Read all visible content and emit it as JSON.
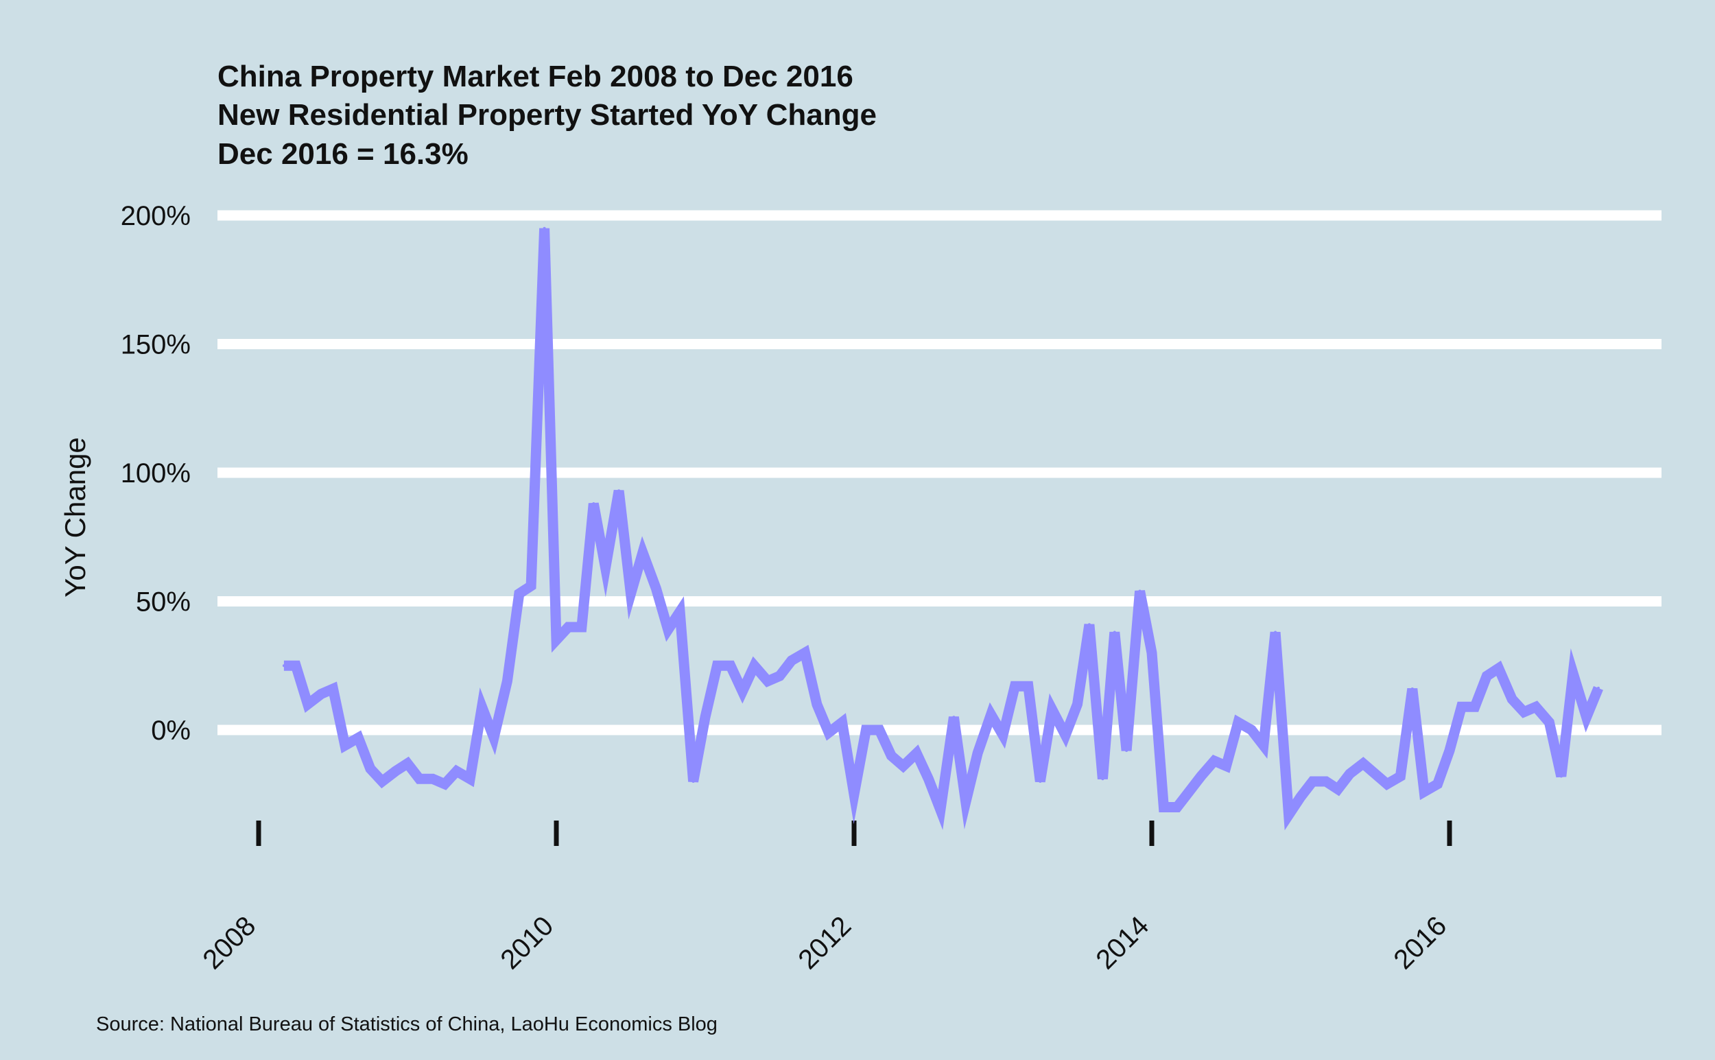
{
  "chart_data": {
    "type": "line",
    "title_lines": [
      "China Property Market Feb 2008 to Dec 2016",
      "New Residential Property Started YoY Change",
      "Dec 2016 = 16.3%"
    ],
    "ylabel": "YoY Change",
    "xlabel": "",
    "source": "Source: National Bureau of Statistics of China, LaoHu Economics Blog",
    "ylim": [
      -35,
      205
    ],
    "xlim": [
      2007.85,
      2017.6
    ],
    "y_ticks": [
      {
        "value": 0,
        "label": "0%"
      },
      {
        "value": 50,
        "label": "50%"
      },
      {
        "value": 100,
        "label": "100%"
      },
      {
        "value": 150,
        "label": "150%"
      },
      {
        "value": 200,
        "label": "200%"
      }
    ],
    "x_ticks": [
      {
        "value": 2008,
        "label": "2008"
      },
      {
        "value": 2010,
        "label": "2010"
      },
      {
        "value": 2012,
        "label": "2012"
      },
      {
        "value": 2014,
        "label": "2014"
      },
      {
        "value": 2016,
        "label": "2016"
      }
    ],
    "grid": true,
    "legend": "none",
    "colors": {
      "background": "#cddfe6",
      "grid": "#ffffff",
      "line": "#8f8cff",
      "text": "#111111"
    },
    "series": [
      {
        "name": "New Residential Property Started YoY Change",
        "x": [
          2008.17,
          2008.25,
          2008.33,
          2008.42,
          2008.5,
          2008.58,
          2008.67,
          2008.75,
          2008.83,
          2008.92,
          2009.0,
          2009.08,
          2009.17,
          2009.25,
          2009.33,
          2009.42,
          2009.5,
          2009.58,
          2009.67,
          2009.75,
          2009.83,
          2009.92,
          2010.0,
          2010.08,
          2010.17,
          2010.25,
          2010.33,
          2010.42,
          2010.5,
          2010.58,
          2010.67,
          2010.75,
          2010.83,
          2010.92,
          2011.0,
          2011.08,
          2011.17,
          2011.25,
          2011.33,
          2011.42,
          2011.5,
          2011.58,
          2011.67,
          2011.75,
          2011.83,
          2011.92,
          2012.0,
          2012.08,
          2012.17,
          2012.25,
          2012.33,
          2012.42,
          2012.5,
          2012.58,
          2012.67,
          2012.75,
          2012.83,
          2012.92,
          2013.0,
          2013.08,
          2013.17,
          2013.25,
          2013.33,
          2013.42,
          2013.5,
          2013.58,
          2013.67,
          2013.75,
          2013.83,
          2013.92,
          2014.0,
          2014.08,
          2014.17,
          2014.25,
          2014.33,
          2014.42,
          2014.5,
          2014.58,
          2014.67,
          2014.75,
          2014.83,
          2014.92,
          2015.0,
          2015.08,
          2015.17,
          2015.25,
          2015.33,
          2015.42,
          2015.5,
          2015.58,
          2015.67,
          2015.75,
          2015.83,
          2015.92,
          2016.0,
          2016.08,
          2016.17,
          2016.25,
          2016.33,
          2016.42,
          2016.5,
          2016.58,
          2016.67,
          2016.75,
          2016.83,
          2016.92,
          2017.0
        ],
        "values": [
          25,
          25,
          10,
          14,
          16,
          -6,
          -3,
          -15,
          -20,
          -16,
          -13,
          -19,
          -19,
          -21,
          -16,
          -19,
          9,
          -3,
          19,
          53,
          56,
          195,
          35,
          40,
          40,
          88,
          63,
          93,
          53,
          69,
          55,
          39,
          46,
          -20,
          5,
          25,
          25,
          15,
          25,
          19,
          21,
          27,
          30,
          10,
          -1,
          3,
          -25,
          0,
          0,
          -10,
          -14,
          -9,
          -19,
          -31,
          5,
          -28,
          -9,
          6,
          -2,
          17,
          17,
          -20,
          8,
          -2,
          10,
          41,
          -19,
          38,
          -8,
          54,
          30,
          -30,
          -30,
          -24,
          -18,
          -12,
          -14,
          3,
          0,
          -6,
          38,
          -33,
          -26,
          -20,
          -20,
          -23,
          -17,
          -13,
          -17,
          -21,
          -18,
          16,
          -24,
          -21,
          -8,
          9,
          9,
          21,
          24,
          12,
          7,
          9,
          3,
          -18,
          22,
          5,
          16.3
        ]
      }
    ]
  }
}
